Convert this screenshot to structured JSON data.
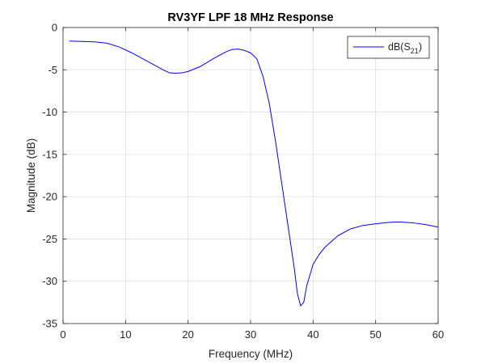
{
  "chart_data": {
    "type": "line",
    "title": "RV3YF LPF 18 MHz Response",
    "xlabel": "Frequency (MHz)",
    "ylabel": "Magnitude (dB)",
    "xlim": [
      0,
      60
    ],
    "ylim": [
      -35,
      0
    ],
    "x_ticks": [
      0,
      10,
      20,
      30,
      40,
      50,
      60
    ],
    "y_ticks": [
      0,
      -5,
      -10,
      -15,
      -20,
      -25,
      -30,
      -35
    ],
    "grid": true,
    "legend_position": "top-right",
    "series": [
      {
        "name": "dB(S21)",
        "legend_base": "dB(S",
        "legend_sub": "21",
        "legend_close": ")",
        "color": "#0000ff",
        "x": [
          1,
          3,
          5,
          7,
          9,
          11,
          13,
          15,
          16,
          17,
          18,
          19,
          20,
          22,
          24,
          26,
          27,
          28,
          29,
          30,
          31,
          32,
          33,
          34,
          35,
          36,
          37,
          37.5,
          38,
          38.5,
          39,
          40,
          41,
          42,
          44,
          46,
          48,
          50,
          52,
          53,
          54,
          56,
          58,
          60
        ],
        "y": [
          -1.6,
          -1.65,
          -1.7,
          -1.85,
          -2.3,
          -3.0,
          -3.8,
          -4.6,
          -5.0,
          -5.35,
          -5.4,
          -5.35,
          -5.2,
          -4.6,
          -3.7,
          -2.9,
          -2.6,
          -2.55,
          -2.7,
          -3.0,
          -3.7,
          -5.8,
          -9.0,
          -13.5,
          -18.5,
          -23.5,
          -28.5,
          -31.5,
          -32.9,
          -32.5,
          -30.5,
          -28.0,
          -26.8,
          -25.9,
          -24.6,
          -23.8,
          -23.4,
          -23.2,
          -23.05,
          -23.0,
          -23.0,
          -23.1,
          -23.3,
          -23.6
        ]
      }
    ]
  }
}
